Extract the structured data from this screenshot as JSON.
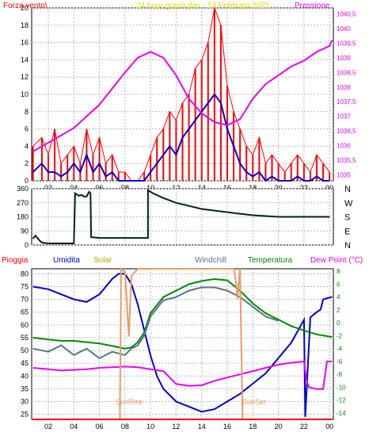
{
  "colors": {
    "red": "#ff0000",
    "blue": "#0000cc",
    "magenta": "#ee00ee",
    "orange": "#ee9966",
    "darkyellow": "#aaaa00",
    "slate": "#557788",
    "green": "#008800",
    "darkgreen": "#002222",
    "grid": "#b8b8b8"
  },
  "top": {
    "left_label": "Forza vento\\",
    "center_label": "24 hour graph day - 14 Febbraio 2021",
    "right_label": "Pressione"
  },
  "bottom_header": {
    "pioggia": "Pioggia",
    "umidita": "Umidita",
    "solar": "Solar",
    "windchill": "Windchill",
    "temperatura": "Temperatura",
    "dewpoint": "Dew Point (°C)"
  },
  "sun": {
    "rise": "SunRise",
    "set": "SunSet"
  },
  "chart_data": [
    {
      "type": "line",
      "x_ticks": [
        "02",
        "04",
        "06",
        "08",
        "10",
        "12",
        "14",
        "16",
        "18",
        "20",
        "22",
        "00"
      ],
      "y_left_ticks": [
        "0",
        "2",
        "4",
        "6",
        "8",
        "10",
        "12",
        "14",
        "16",
        "18",
        "20"
      ],
      "y_right_ticks": [
        "1035",
        "1035,5",
        "1036",
        "1036,5",
        "1037",
        "1037,5",
        "1038",
        "1038,5",
        "1039",
        "1039,5",
        "1040",
        "1040,5"
      ],
      "ylim_left": [
        0,
        20
      ],
      "ylim_right": [
        1034.8,
        1040.7
      ],
      "xlim": [
        0.7,
        24.3
      ],
      "series": [
        {
          "name": "Forza vento",
          "kind": "gust",
          "color": "#ff0000",
          "x": [
            0.8,
            1.5,
            2.0,
            2.5,
            3.0,
            3.5,
            4.0,
            4.5,
            5.0,
            5.5,
            6.0,
            6.5,
            7.0,
            7.5,
            8.0,
            8.5,
            9.0,
            9.5,
            10.0,
            10.5,
            11.0,
            11.5,
            12.0,
            12.5,
            13.0,
            13.5,
            14.0,
            14.5,
            15.0,
            15.5,
            16.0,
            16.5,
            17.0,
            17.5,
            18.0,
            18.5,
            19.0,
            19.5,
            20.0,
            20.5,
            21.0,
            21.5,
            22.0,
            22.5,
            23.0,
            23.5,
            24.0
          ],
          "y": [
            4,
            5,
            3,
            6,
            2,
            3,
            4,
            2,
            6,
            3,
            5,
            2,
            3,
            1,
            1,
            0,
            0,
            1,
            3,
            5,
            6,
            8,
            7,
            9,
            10,
            13,
            14,
            16,
            20,
            18,
            11,
            8,
            6,
            4,
            3,
            5,
            2,
            3,
            2,
            1,
            2,
            3,
            2,
            1,
            3,
            2,
            1
          ]
        },
        {
          "name": "Wind average",
          "kind": "avg",
          "color": "#0000cc",
          "x": [
            0.8,
            1.5,
            2.0,
            2.5,
            3.0,
            3.5,
            4.0,
            4.5,
            5.0,
            5.5,
            6.0,
            6.5,
            7.0,
            7.5,
            8.0,
            8.5,
            9.0,
            9.5,
            10.0,
            10.5,
            11.0,
            11.5,
            12.0,
            12.5,
            13.0,
            13.5,
            14.0,
            14.5,
            15.0,
            15.5,
            16.0,
            16.5,
            17.0,
            17.5,
            18.0,
            18.5,
            19.0,
            19.5,
            20.0,
            20.5,
            21.0,
            21.5,
            22.0,
            22.5,
            23.0,
            23.5,
            24.0
          ],
          "y": [
            1,
            2,
            1,
            1,
            0.5,
            1,
            2,
            1,
            3,
            1,
            2,
            0.5,
            1,
            0,
            0,
            0,
            0,
            0,
            1,
            2,
            3,
            4,
            3,
            5,
            6,
            7,
            8,
            9,
            10,
            9,
            6,
            4,
            2,
            1,
            0.5,
            1,
            0,
            0.5,
            0,
            0,
            0,
            0.5,
            0,
            0,
            0.5,
            0,
            0
          ]
        },
        {
          "name": "Pressione",
          "kind": "pressure",
          "color": "#ee00ee",
          "x": [
            0.8,
            2,
            4,
            6,
            8,
            9,
            10,
            11,
            12,
            13,
            14,
            15,
            16,
            17,
            18,
            19,
            20,
            21,
            22,
            23,
            24,
            24.2
          ],
          "y": [
            1035.8,
            1036.1,
            1036.6,
            1037.4,
            1038.5,
            1039.0,
            1039.2,
            1039.0,
            1038.4,
            1037.6,
            1037.1,
            1036.8,
            1036.7,
            1036.9,
            1037.6,
            1038.1,
            1038.4,
            1038.7,
            1038.9,
            1039.2,
            1039.4,
            1039.6
          ]
        }
      ]
    },
    {
      "type": "line",
      "x_ticks": [
        "02",
        "04",
        "06",
        "08",
        "10",
        "12",
        "14",
        "16",
        "18",
        "20",
        "22",
        "00"
      ],
      "y_left_ticks": [
        "0",
        "90",
        "180",
        "270",
        "360"
      ],
      "y_right_ticks": [
        "N",
        "W",
        "S",
        "E",
        "N"
      ],
      "ylim_left": [
        0,
        360
      ],
      "xlim": [
        0.7,
        24.3
      ],
      "series": [
        {
          "name": "Direzione vento",
          "color": "#002222",
          "x": [
            0.8,
            1.0,
            1.3,
            1.5,
            2.0,
            3.0,
            4.0,
            4.1,
            4.2,
            4.4,
            4.6,
            4.8,
            5.0,
            5.2,
            5.3,
            5.35,
            6.0,
            8.0,
            9.5,
            9.8,
            9.8,
            10.2,
            11,
            12,
            13,
            14,
            15,
            16,
            17,
            18,
            19,
            20,
            22,
            24
          ],
          "y": [
            40,
            60,
            30,
            15,
            10,
            10,
            10,
            330,
            325,
            315,
            320,
            310,
            310,
            340,
            330,
            50,
            45,
            45,
            45,
            45,
            350,
            330,
            300,
            270,
            250,
            230,
            220,
            210,
            200,
            190,
            185,
            180,
            180,
            180
          ]
        }
      ]
    },
    {
      "type": "line",
      "x_ticks": [
        "02",
        "04",
        "06",
        "08",
        "10",
        "12",
        "14",
        "16",
        "18",
        "20",
        "22",
        "00"
      ],
      "y_left_ticks": [
        "25",
        "30",
        "35",
        "40",
        "45",
        "50",
        "55",
        "60",
        "65",
        "70",
        "75",
        "80"
      ],
      "y_right_ticks": [
        "-14",
        "-12",
        "-10",
        "-8",
        "-6",
        "-4",
        "-2",
        "0",
        "2",
        "4",
        "6",
        "8"
      ],
      "ylim_left": [
        23,
        82
      ],
      "ylim_right": [
        -15,
        8.4
      ],
      "xlim": [
        0.7,
        24.3
      ],
      "series": [
        {
          "name": "Umidita",
          "axis": "left",
          "color": "#0000cc",
          "x": [
            0.8,
            2,
            3,
            4,
            5,
            6,
            7,
            7.5,
            8,
            8.5,
            9,
            9.5,
            10,
            10.5,
            11,
            12,
            13,
            14,
            15,
            16,
            17,
            18,
            19,
            20,
            21,
            22,
            22.1,
            22.5,
            23,
            23.3,
            23.5,
            24.2
          ],
          "y": [
            75,
            74,
            72,
            70,
            69,
            72,
            78,
            80,
            80,
            76,
            68,
            58,
            48,
            40,
            35,
            30,
            28,
            26,
            27,
            30,
            33,
            37,
            41,
            47,
            53,
            62,
            24,
            63,
            65,
            66,
            70,
            71
          ]
        },
        {
          "name": "Temperatura",
          "axis": "right",
          "color": "#008800",
          "x": [
            0.8,
            2,
            3,
            4,
            5,
            6,
            7,
            8,
            8.5,
            9,
            9.5,
            10,
            11,
            12,
            13,
            14,
            15,
            16,
            17,
            18,
            19,
            20,
            21,
            22,
            23,
            24.2
          ],
          "y": [
            -2.3,
            -2.6,
            -2.8,
            -2.8,
            -3.0,
            -3.2,
            -3.6,
            -4.0,
            -3.8,
            -3.0,
            -1.5,
            1.5,
            4.0,
            5.0,
            6.0,
            6.5,
            6.8,
            6.6,
            5.0,
            3.0,
            1.5,
            0.5,
            -0.5,
            -1.2,
            -1.8,
            -2.2
          ]
        },
        {
          "name": "Windchill",
          "axis": "right",
          "color": "#557788",
          "x": [
            0.8,
            2,
            3,
            4,
            5,
            6,
            7,
            8,
            8.5,
            9,
            9.5,
            10,
            11,
            12,
            13,
            14,
            15,
            16,
            17,
            18,
            19,
            20
          ],
          "y": [
            -4.0,
            -4.5,
            -3.5,
            -5.0,
            -4.0,
            -5.5,
            -4.5,
            -5.0,
            -4.0,
            -3.5,
            -2.0,
            1.0,
            3.5,
            4.0,
            5.0,
            5.5,
            5.5,
            5.0,
            4.0,
            2.5,
            1.0,
            0.3
          ]
        },
        {
          "name": "Dew Point (°C)",
          "axis": "right",
          "color": "#ee00ee",
          "x": [
            0.8,
            2,
            3,
            4,
            5,
            6,
            7,
            8,
            9,
            10,
            11,
            12,
            13,
            14,
            15,
            16,
            17,
            18,
            19,
            20,
            21,
            22,
            22.2,
            22.4,
            23,
            23.5,
            23.8,
            24.2
          ],
          "y": [
            -7.0,
            -7.2,
            -7.4,
            -7.3,
            -7.2,
            -7.0,
            -6.9,
            -6.8,
            -6.9,
            -7.2,
            -7.5,
            -9.5,
            -9.8,
            -9.7,
            -9.0,
            -8.5,
            -8.0,
            -7.5,
            -7.0,
            -6.5,
            -6.2,
            -6.0,
            -9.0,
            -10.0,
            -10.3,
            -10.3,
            -6.0,
            -6.0
          ]
        },
        {
          "name": "Solar",
          "axis": "fill",
          "color": "#ee9966",
          "x": [
            7.6,
            7.7,
            8.0,
            8.3,
            8.5,
            9.0,
            9.3,
            16.5,
            16.7,
            16.8,
            17.0,
            17.2
          ],
          "y": [
            0,
            1,
            0.98,
            0.55,
            0.95,
            1,
            1,
            1,
            0.9,
            0.8,
            1,
            0
          ]
        },
        {
          "name": "Pioggia",
          "axis": "left",
          "color": "#ff0000",
          "x": [
            0.8,
            24.2
          ],
          "y": [
            23,
            23
          ]
        }
      ]
    }
  ]
}
